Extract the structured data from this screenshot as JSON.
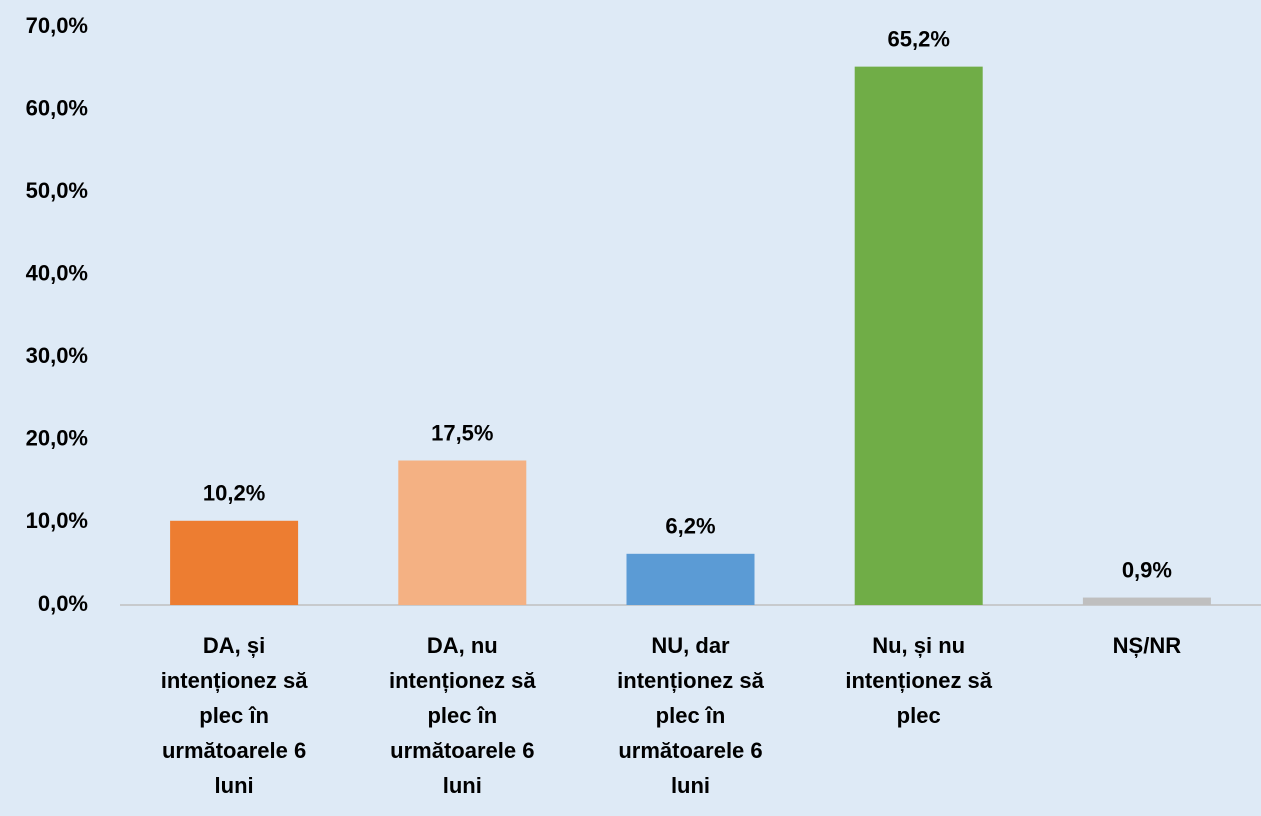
{
  "chart_data": {
    "type": "bar",
    "categories": [
      "DA, și intenționez să plec în următoarele 6 luni",
      "DA, nu intenționez să plec în următoarele 6 luni",
      "NU, dar intenționez să plec în următoarele 6 luni",
      "Nu, și nu intenționez să plec",
      "NȘ/NR"
    ],
    "values": [
      10.2,
      17.5,
      6.2,
      65.2,
      0.9
    ],
    "value_labels": [
      "10,2%",
      "17,5%",
      "6,2%",
      "65,2%",
      "0,9%"
    ],
    "colors": [
      "#ed7d31",
      "#f4b183",
      "#5b9bd5",
      "#70ad47",
      "#bfbfbf"
    ],
    "ylim": [
      0,
      70
    ],
    "yticks": [
      {
        "value": 0,
        "label": "0,0%"
      },
      {
        "value": 10,
        "label": "10,0%"
      },
      {
        "value": 20,
        "label": "20,0%"
      },
      {
        "value": 30,
        "label": "30,0%"
      },
      {
        "value": 40,
        "label": "40,0%"
      },
      {
        "value": 50,
        "label": "50,0%"
      },
      {
        "value": 60,
        "label": "60,0%"
      },
      {
        "value": 70,
        "label": "70,0%"
      }
    ],
    "grid": false
  }
}
